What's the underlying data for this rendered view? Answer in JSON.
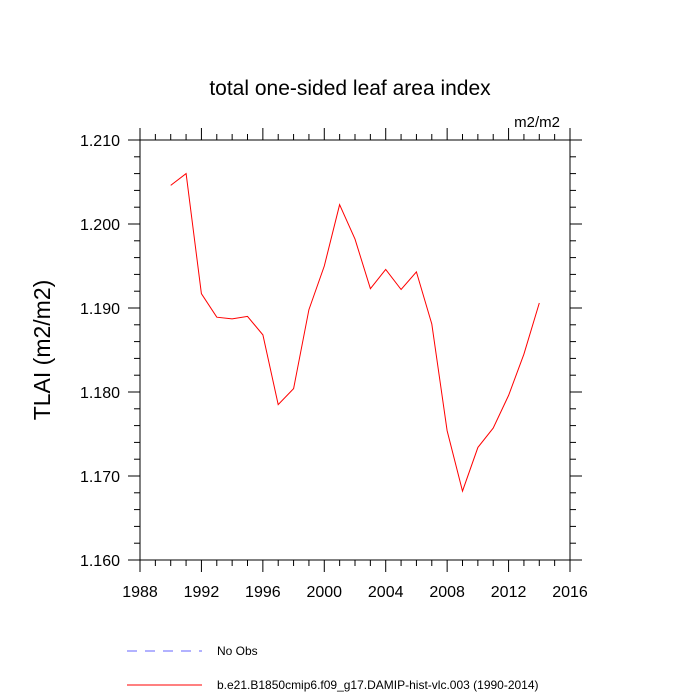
{
  "chart_data": {
    "type": "line",
    "title": "total one-sided leaf area index",
    "units": "m2/m2",
    "ylabel": "TLAI  (m2/m2)",
    "xlabel": "",
    "xlim": [
      1988,
      2016
    ],
    "ylim": [
      1.16,
      1.21
    ],
    "xticks": [
      1988,
      1992,
      1996,
      2000,
      2004,
      2008,
      2012,
      2016
    ],
    "yticks": [
      1.16,
      1.17,
      1.18,
      1.19,
      1.2,
      1.21
    ],
    "xtick_labels": [
      "1988",
      "1992",
      "1996",
      "2000",
      "2004",
      "2008",
      "2012",
      "2016"
    ],
    "ytick_labels": [
      "1.160",
      "1.170",
      "1.180",
      "1.190",
      "1.200",
      "1.210"
    ],
    "series": [
      {
        "name": "No Obs",
        "color": "#6666ff",
        "dash": true,
        "x": [],
        "y": []
      },
      {
        "name": "b.e21.B1850cmip6.f09_g17.DAMIP-hist-vlc.003 (1990-2014)",
        "color": "#ff0000",
        "dash": false,
        "x": [
          1990,
          1991,
          1992,
          1993,
          1994,
          1995,
          1996,
          1997,
          1998,
          1999,
          2000,
          2001,
          2002,
          2003,
          2004,
          2005,
          2006,
          2007,
          2008,
          2009,
          2010,
          2011,
          2012,
          2013,
          2014
        ],
        "y": [
          1.2046,
          1.206,
          1.1917,
          1.1889,
          1.1887,
          1.189,
          1.1868,
          1.1785,
          1.1804,
          1.1898,
          1.195,
          1.2023,
          1.1982,
          1.1923,
          1.1946,
          1.1922,
          1.1943,
          1.1881,
          1.1754,
          1.1682,
          1.1734,
          1.1757,
          1.1796,
          1.1845,
          1.1906
        ]
      }
    ],
    "legend_position": "bottom"
  }
}
